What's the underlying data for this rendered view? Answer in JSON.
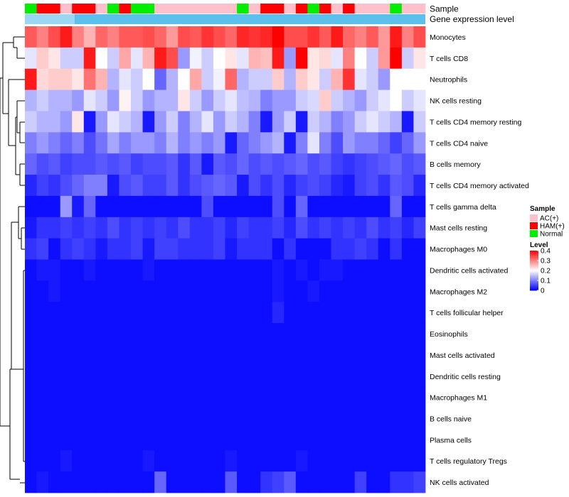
{
  "chart_data": {
    "type": "heatmap",
    "title": "",
    "color_scale": {
      "min": 0,
      "mid": 0.2,
      "max": 0.4,
      "low_color": "#0000ff",
      "mid_color": "#ffffff",
      "high_color": "#ff0000"
    },
    "annotation_tracks": [
      {
        "name": "Sample",
        "label": "Sample"
      },
      {
        "name": "Gene expression level",
        "label": "Gene expression level",
        "color": "#5bc0eb",
        "values": []
      }
    ],
    "sample_groups": [
      {
        "name": "AC(+)",
        "color": "#ffc0cb"
      },
      {
        "name": "HAM(+)",
        "color": "#ff0000"
      },
      {
        "name": "Normal",
        "color": "#00ee00"
      }
    ],
    "sample_annotation": [
      "Normal",
      "HAM(+)",
      "HAM(+)",
      "AC(+)",
      "HAM(+)",
      "HAM(+)",
      "AC(+)",
      "Normal",
      "HAM(+)",
      "Normal",
      "Normal",
      "AC(+)",
      "AC(+)",
      "AC(+)",
      "AC(+)",
      "AC(+)",
      "AC(+)",
      "AC(+)",
      "Normal",
      "AC(+)",
      "HAM(+)",
      "HAM(+)",
      "AC(+)",
      "HAM(+)",
      "Normal",
      "HAM(+)",
      "AC(+)",
      "HAM(+)",
      "AC(+)",
      "AC(+)",
      "AC(+)",
      "Normal",
      "AC(+)",
      "AC(+)"
    ],
    "rows": [
      "Monocytes",
      "T cells CD8",
      "Neutrophils",
      "NK cells resting",
      "T cells CD4 memory resting",
      "T cells CD4 naive",
      "B cells memory",
      "T cells CD4 memory activated",
      "T cells gamma delta",
      "Mast cells resting",
      "Macrophages M0",
      "Dendritic cells activated",
      "Macrophages M2",
      "T cells follicular helper",
      "Eosinophils",
      "Mast cells activated",
      "Dendritic cells resting",
      "Macrophages M1",
      "B cells naive",
      "Plasma cells",
      "T cells regulatory  Tregs",
      "NK cells activated"
    ],
    "values": [
      [
        0.33,
        0.3,
        0.34,
        0.38,
        0.3,
        0.26,
        0.32,
        0.3,
        0.33,
        0.33,
        0.34,
        0.32,
        0.28,
        0.34,
        0.33,
        0.36,
        0.34,
        0.32,
        0.37,
        0.36,
        0.37,
        0.4,
        0.34,
        0.34,
        0.36,
        0.33,
        0.38,
        0.32,
        0.3,
        0.33,
        0.28,
        0.38,
        0.3,
        0.34
      ],
      [
        0.18,
        0.24,
        0.22,
        0.16,
        0.16,
        0.38,
        0.2,
        0.16,
        0.27,
        0.18,
        0.26,
        0.38,
        0.34,
        0.12,
        0.19,
        0.16,
        0.2,
        0.22,
        0.18,
        0.26,
        0.25,
        0.38,
        0.12,
        0.4,
        0.22,
        0.23,
        0.18,
        0.3,
        0.2,
        0.16,
        0.28,
        0.4,
        0.16,
        0.22
      ],
      [
        0.38,
        0.23,
        0.24,
        0.24,
        0.22,
        0.31,
        0.26,
        0.14,
        0.18,
        0.16,
        0.2,
        0.08,
        0.14,
        0.2,
        0.27,
        0.16,
        0.19,
        0.32,
        0.14,
        0.16,
        0.16,
        0.24,
        0.14,
        0.24,
        0.22,
        0.16,
        0.26,
        0.36,
        0.18,
        0.16,
        0.12,
        0.2,
        0.2,
        0.2
      ],
      [
        0.14,
        0.16,
        0.14,
        0.14,
        0.12,
        0.18,
        0.16,
        0.12,
        0.21,
        0.16,
        0.12,
        0.14,
        0.14,
        0.22,
        0.16,
        0.12,
        0.16,
        0.18,
        0.15,
        0.14,
        0.1,
        0.12,
        0.12,
        0.16,
        0.17,
        0.24,
        0.16,
        0.14,
        0.12,
        0.16,
        0.18,
        0.2,
        0.16,
        0.18
      ],
      [
        0.16,
        0.14,
        0.14,
        0.12,
        0.22,
        0.02,
        0.12,
        0.18,
        0.16,
        0.14,
        0.02,
        0.12,
        0.16,
        0.1,
        0.14,
        0.18,
        0.12,
        0.16,
        0.14,
        0.1,
        0.02,
        0.12,
        0.16,
        0.02,
        0.16,
        0.14,
        0.1,
        0.12,
        0.16,
        0.18,
        0.16,
        0.14,
        0.02,
        0.16
      ],
      [
        0.1,
        0.12,
        0.1,
        0.08,
        0.1,
        0.06,
        0.09,
        0.13,
        0.1,
        0.12,
        0.12,
        0.1,
        0.14,
        0.1,
        0.12,
        0.1,
        0.12,
        0.02,
        0.08,
        0.1,
        0.12,
        0.14,
        0.02,
        0.1,
        0.18,
        0.1,
        0.06,
        0.12,
        0.1,
        0.1,
        0.08,
        0.05,
        0.08,
        0.12
      ],
      [
        0.08,
        0.06,
        0.07,
        0.05,
        0.06,
        0.06,
        0.07,
        0.06,
        0.07,
        0.05,
        0.06,
        0.06,
        0.07,
        0.04,
        0.07,
        0.02,
        0.07,
        0.06,
        0.08,
        0.06,
        0.07,
        0.06,
        0.07,
        0.08,
        0.06,
        0.07,
        0.05,
        0.04,
        0.05,
        0.06,
        0.07,
        0.08,
        0.06,
        0.07
      ],
      [
        0.03,
        0.05,
        0.04,
        0.06,
        0.08,
        0.1,
        0.1,
        0.02,
        0.06,
        0.07,
        0.05,
        0.05,
        0.07,
        0.04,
        0.06,
        0.07,
        0.08,
        0.07,
        0.02,
        0.06,
        0.04,
        0.06,
        0.03,
        0.05,
        0.06,
        0.05,
        0.03,
        0.02,
        0.05,
        0.06,
        0.04,
        0.07,
        0.06,
        0.03
      ],
      [
        0.01,
        0.01,
        0.01,
        0.12,
        0.02,
        0.08,
        0.01,
        0.01,
        0.01,
        0.01,
        0.01,
        0.01,
        0.01,
        0.01,
        0.01,
        0.06,
        0.01,
        0.01,
        0.01,
        0.01,
        0.01,
        0.06,
        0.01,
        0.08,
        0.01,
        0.01,
        0.01,
        0.01,
        0.01,
        0.01,
        0.01,
        0.08,
        0.01,
        0.01
      ],
      [
        0.02,
        0.04,
        0.04,
        0.05,
        0.04,
        0.05,
        0.04,
        0.06,
        0.04,
        0.05,
        0.04,
        0.05,
        0.04,
        0.06,
        0.04,
        0.04,
        0.05,
        0.03,
        0.05,
        0.04,
        0.04,
        0.05,
        0.03,
        0.06,
        0.04,
        0.05,
        0.04,
        0.05,
        0.04,
        0.06,
        0.04,
        0.05,
        0.03,
        0.05
      ],
      [
        0.04,
        0.05,
        0.01,
        0.04,
        0.05,
        0.04,
        0.02,
        0.04,
        0.04,
        0.05,
        0.02,
        0.05,
        0.05,
        0.04,
        0.04,
        0.04,
        0.05,
        0.02,
        0.04,
        0.04,
        0.04,
        0.01,
        0.04,
        0.01,
        0.01,
        0.01,
        0.04,
        0.04,
        0.05,
        0.04,
        0.01,
        0.04,
        0.01,
        0.01
      ],
      [
        0.01,
        0.02,
        0.02,
        0.01,
        0.01,
        0.02,
        0.01,
        0.01,
        0.01,
        0.01,
        0.02,
        0.01,
        0.01,
        0.01,
        0.01,
        0.01,
        0.01,
        0.01,
        0.01,
        0.01,
        0.01,
        0.02,
        0.01,
        0.02,
        0.01,
        0.02,
        0.02,
        0.01,
        0.01,
        0.01,
        0.01,
        0.01,
        0.01,
        0.01
      ],
      [
        0.01,
        0.01,
        0.02,
        0.01,
        0.01,
        0.01,
        0.01,
        0.01,
        0.01,
        0.01,
        0.01,
        0.01,
        0.01,
        0.01,
        0.01,
        0.01,
        0.01,
        0.01,
        0.01,
        0.01,
        0.01,
        0.02,
        0.01,
        0.01,
        0.02,
        0.01,
        0.01,
        0.01,
        0.01,
        0.01,
        0.01,
        0.01,
        0.01,
        0.01
      ],
      [
        0.01,
        0.01,
        0.01,
        0.01,
        0.01,
        0.01,
        0.01,
        0.01,
        0.01,
        0.01,
        0.01,
        0.01,
        0.01,
        0.01,
        0.01,
        0.01,
        0.01,
        0.01,
        0.01,
        0.01,
        0.01,
        0.03,
        0.01,
        0.01,
        0.01,
        0.01,
        0.01,
        0.01,
        0.01,
        0.01,
        0.01,
        0.01,
        0.01,
        0.01
      ],
      [
        0.01,
        0.01,
        0.01,
        0.01,
        0.01,
        0.01,
        0.01,
        0.01,
        0.01,
        0.01,
        0.01,
        0.01,
        0.01,
        0.01,
        0.01,
        0.01,
        0.01,
        0.01,
        0.01,
        0.01,
        0.01,
        0.01,
        0.01,
        0.01,
        0.01,
        0.01,
        0.01,
        0.01,
        0.01,
        0.01,
        0.01,
        0.01,
        0.01,
        0.01
      ],
      [
        0.01,
        0.01,
        0.01,
        0.01,
        0.01,
        0.01,
        0.01,
        0.01,
        0.01,
        0.01,
        0.01,
        0.01,
        0.01,
        0.01,
        0.01,
        0.01,
        0.01,
        0.01,
        0.01,
        0.01,
        0.01,
        0.01,
        0.01,
        0.01,
        0.01,
        0.01,
        0.01,
        0.01,
        0.01,
        0.01,
        0.01,
        0.01,
        0.01,
        0.01
      ],
      [
        0.01,
        0.01,
        0.01,
        0.01,
        0.01,
        0.01,
        0.01,
        0.01,
        0.01,
        0.01,
        0.01,
        0.01,
        0.01,
        0.01,
        0.01,
        0.01,
        0.01,
        0.01,
        0.01,
        0.01,
        0.01,
        0.01,
        0.01,
        0.01,
        0.01,
        0.01,
        0.01,
        0.01,
        0.01,
        0.01,
        0.01,
        0.01,
        0.01,
        0.01
      ],
      [
        0.01,
        0.01,
        0.01,
        0.01,
        0.01,
        0.01,
        0.01,
        0.01,
        0.01,
        0.01,
        0.01,
        0.01,
        0.01,
        0.01,
        0.01,
        0.01,
        0.01,
        0.01,
        0.01,
        0.01,
        0.01,
        0.01,
        0.01,
        0.01,
        0.01,
        0.01,
        0.01,
        0.01,
        0.01,
        0.01,
        0.01,
        0.01,
        0.01,
        0.01
      ],
      [
        0.01,
        0.01,
        0.01,
        0.01,
        0.01,
        0.01,
        0.01,
        0.01,
        0.01,
        0.01,
        0.01,
        0.01,
        0.01,
        0.01,
        0.01,
        0.01,
        0.01,
        0.01,
        0.01,
        0.01,
        0.01,
        0.01,
        0.01,
        0.01,
        0.01,
        0.01,
        0.01,
        0.01,
        0.01,
        0.01,
        0.01,
        0.01,
        0.01,
        0.01
      ],
      [
        0.01,
        0.01,
        0.01,
        0.01,
        0.01,
        0.01,
        0.01,
        0.01,
        0.01,
        0.01,
        0.01,
        0.01,
        0.01,
        0.01,
        0.01,
        0.01,
        0.01,
        0.01,
        0.01,
        0.01,
        0.01,
        0.01,
        0.01,
        0.01,
        0.01,
        0.01,
        0.01,
        0.01,
        0.01,
        0.01,
        0.01,
        0.01,
        0.01,
        0.01
      ],
      [
        0.01,
        0.01,
        0.01,
        0.02,
        0.01,
        0.01,
        0.01,
        0.01,
        0.01,
        0.01,
        0.02,
        0.01,
        0.01,
        0.01,
        0.01,
        0.01,
        0.01,
        0.02,
        0.01,
        0.01,
        0.01,
        0.01,
        0.01,
        0.02,
        0.01,
        0.01,
        0.01,
        0.01,
        0.01,
        0.01,
        0.01,
        0.01,
        0.01,
        0.01
      ],
      [
        0.01,
        0.02,
        0.01,
        0.01,
        0.01,
        0.01,
        0.01,
        0.01,
        0.01,
        0.01,
        0.01,
        0.08,
        0.01,
        0.01,
        0.01,
        0.01,
        0.01,
        0.07,
        0.01,
        0.01,
        0.04,
        0.05,
        0.07,
        0.01,
        0.01,
        0.01,
        0.01,
        0.01,
        0.05,
        0.01,
        0.01,
        0.04,
        0.04,
        0.05
      ]
    ],
    "legends": [
      {
        "title": "Sample",
        "items": [
          "AC(+)",
          "HAM(+)",
          "Normal"
        ]
      },
      {
        "title": "Level",
        "ticks": [
          "0.4",
          "0.3",
          "0.2",
          "0.1",
          "0"
        ]
      }
    ]
  }
}
